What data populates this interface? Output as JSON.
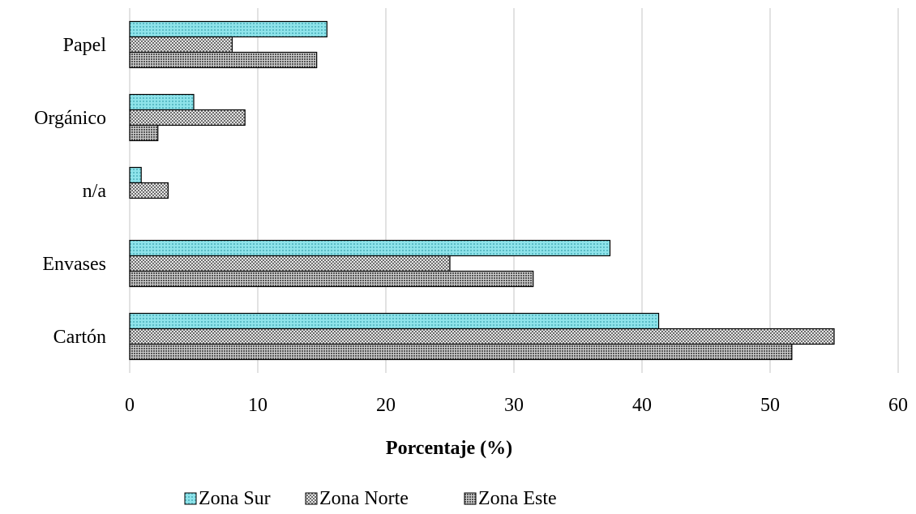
{
  "chart_data": {
    "type": "bar",
    "orientation": "horizontal",
    "categories": [
      "Cartón",
      "Envases",
      "n/a",
      "Orgánico",
      "Papel"
    ],
    "series": [
      {
        "name": "Zona Sur",
        "values": [
          41.3,
          37.5,
          0.9,
          5.0,
          15.4
        ],
        "color": "#7fd8e0",
        "pattern": "fine-dots"
      },
      {
        "name": "Zona Norte",
        "values": [
          55.0,
          25.0,
          3.0,
          9.0,
          8.0
        ],
        "color": "#a6a6a6",
        "pattern": "checker"
      },
      {
        "name": "Zona Este",
        "values": [
          51.7,
          31.5,
          0,
          2.2,
          14.6
        ],
        "color": "#8c8c8c",
        "pattern": "dense-checker"
      }
    ],
    "xlabel": "Porcentaje (%)",
    "xlim": [
      0,
      60
    ],
    "xticks": [
      "0",
      "10",
      "20",
      "30",
      "40",
      "50",
      "60"
    ],
    "grid": true,
    "legend_position": "bottom"
  }
}
